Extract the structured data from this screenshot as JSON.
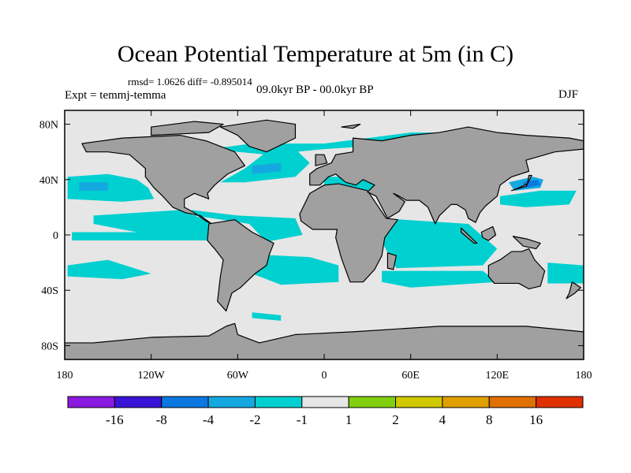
{
  "title": "Ocean Potential Temperature at 5m (in C)",
  "stats": "rmsd= 1.0626 diff= -0.895014",
  "left_string": "Expt = temmj-temma",
  "center_string": "09.0kyr BP - 00.0kyr BP",
  "right_string": "DJF",
  "colors": {
    "land": "#a0a0a0",
    "ocean_neutral": "#e6e6e6",
    "anomaly_minus1_minus2": "#00d0d0",
    "anomaly_minus2_minus4": "#14a8e0",
    "anomaly_minus4_minus8": "#0a78e0"
  },
  "chart_data": {
    "type": "heatmap",
    "projection": "cylindrical-equidistant",
    "lon_range": [
      -180,
      180
    ],
    "lat_range": [
      -90,
      90
    ],
    "x_ticks": [
      "180",
      "120W",
      "60W",
      "0",
      "60E",
      "120E",
      "180"
    ],
    "y_ticks": [
      "80N",
      "40N",
      "0",
      "40S",
      "80S"
    ],
    "colorbar": {
      "labels": [
        "-16",
        "-8",
        "-4",
        "-2",
        "-1",
        "1",
        "2",
        "4",
        "8",
        "16"
      ],
      "colors": [
        "#8a1ae0",
        "#3a14d6",
        "#0a78e0",
        "#14a8e0",
        "#00d0d0",
        "#e6e6e6",
        "#80d010",
        "#d0c800",
        "#e0a000",
        "#e07000",
        "#e03000"
      ]
    }
  }
}
